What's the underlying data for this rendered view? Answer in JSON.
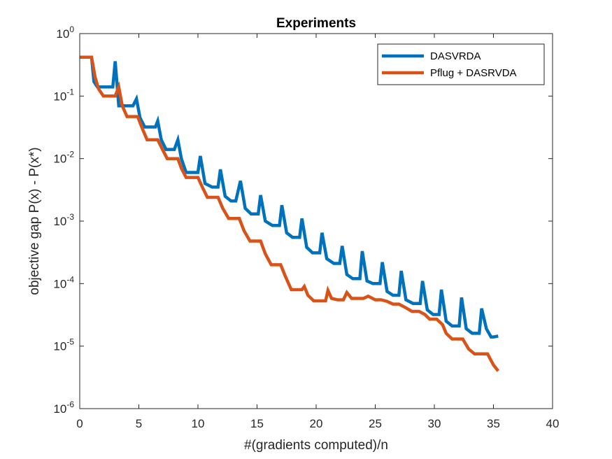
{
  "chart_data": {
    "type": "line",
    "title": "Experiments",
    "xlabel": "#(gradients computed)/n",
    "ylabel": "objective gap P(x) - P(x*)",
    "xlim": [
      0,
      40
    ],
    "ylim": [
      1e-06,
      1
    ],
    "yscale": "log",
    "xticks": [
      0,
      5,
      10,
      15,
      20,
      25,
      30,
      35,
      40
    ],
    "yticks": [
      {
        "value": 1e-06,
        "exp": "-6"
      },
      {
        "value": 1e-05,
        "exp": "-5"
      },
      {
        "value": 0.0001,
        "exp": "-4"
      },
      {
        "value": 0.001,
        "exp": "-3"
      },
      {
        "value": 0.01,
        "exp": "-2"
      },
      {
        "value": 0.1,
        "exp": "-1"
      },
      {
        "value": 1,
        "exp": "0"
      }
    ],
    "ytick_base": "10",
    "grid": false,
    "legend_position": "top-right",
    "series": [
      {
        "name": "DASVRDA",
        "color": "#0072BD",
        "x": [
          0,
          0.3,
          0.6,
          0.9,
          1.0,
          1.2,
          1.5,
          2.0,
          2.5,
          2.8,
          3.0,
          3.3,
          3.6,
          4.0,
          4.5,
          4.8,
          5.1,
          5.5,
          6.0,
          6.4,
          6.6,
          6.9,
          7.3,
          8.0,
          8.3,
          8.6,
          9.0,
          9.5,
          10.0,
          10.2,
          10.6,
          11.2,
          11.7,
          11.9,
          12.3,
          12.8,
          13.2,
          13.6,
          14.0,
          14.5,
          15.1,
          15.3,
          15.7,
          16.3,
          16.9,
          17.1,
          17.5,
          18.0,
          18.6,
          18.8,
          19.2,
          19.7,
          20.3,
          20.5,
          20.9,
          21.5,
          22.0,
          22.2,
          22.6,
          23.1,
          23.7,
          23.9,
          24.3,
          24.8,
          25.4,
          25.6,
          26.0,
          26.5,
          27.0,
          27.2,
          27.6,
          28.2,
          28.8,
          29.0,
          29.4,
          29.9,
          30.4,
          30.6,
          31.0,
          31.5,
          32.1,
          32.3,
          32.7,
          33.2,
          33.8,
          34.0,
          34.4,
          34.8,
          35.0,
          35.4
        ],
        "values": [
          0.42,
          0.42,
          0.42,
          0.42,
          0.42,
          0.17,
          0.14,
          0.14,
          0.14,
          0.14,
          0.36,
          0.07,
          0.07,
          0.07,
          0.07,
          0.09,
          0.045,
          0.032,
          0.032,
          0.032,
          0.04,
          0.02,
          0.014,
          0.014,
          0.02,
          0.01,
          0.006,
          0.006,
          0.006,
          0.011,
          0.004,
          0.0035,
          0.0035,
          0.0067,
          0.0025,
          0.0021,
          0.0021,
          0.0044,
          0.0016,
          0.0013,
          0.0013,
          0.0026,
          0.001,
          0.00085,
          0.00085,
          0.0018,
          0.00065,
          0.00055,
          0.00055,
          0.0011,
          0.00038,
          0.00031,
          0.00031,
          0.00065,
          0.00025,
          0.00021,
          0.00021,
          0.0004,
          0.00014,
          0.00012,
          0.00012,
          0.00033,
          0.00011,
          0.0001,
          0.0001,
          0.00022,
          7.5e-05,
          6.5e-05,
          6.5e-05,
          0.00016,
          5.5e-05,
          4.8e-05,
          4.8e-05,
          0.00011,
          3.8e-05,
          3.2e-05,
          3.2e-05,
          8e-05,
          2.5e-05,
          2.1e-05,
          2.1e-05,
          6e-05,
          1.9e-05,
          1.6e-05,
          1.6e-05,
          4e-05,
          1.9e-05,
          1.4e-05,
          1.4e-05,
          1.45e-05
        ]
      },
      {
        "name": "Pflug + DASRVDA",
        "color": "#D95319",
        "x": [
          0,
          0.5,
          1.0,
          1.3,
          1.6,
          2.0,
          2.5,
          3.0,
          3.3,
          3.6,
          4.0,
          4.5,
          4.9,
          5.3,
          5.7,
          6.2,
          6.6,
          7.0,
          7.4,
          7.9,
          8.3,
          8.6,
          9.0,
          9.6,
          10.0,
          10.4,
          10.8,
          11.3,
          11.7,
          12.1,
          12.6,
          13.1,
          13.5,
          13.9,
          14.4,
          15.0,
          15.3,
          15.7,
          16.2,
          16.7,
          17.0,
          17.4,
          17.9,
          18.3,
          18.8,
          19.0,
          19.3,
          19.8,
          20.3,
          20.8,
          21.0,
          21.3,
          21.8,
          22.3,
          22.6,
          23.0,
          23.5,
          24.0,
          24.4,
          25.0,
          25.5,
          26.0,
          26.5,
          27.0,
          27.6,
          28.1,
          28.7,
          29.2,
          29.6,
          30.2,
          30.7,
          31.0,
          31.5,
          32.0,
          32.4,
          32.9,
          33.4,
          33.9,
          34.5,
          35.0,
          35.4
        ],
        "values": [
          0.42,
          0.42,
          0.42,
          0.2,
          0.13,
          0.1,
          0.1,
          0.1,
          0.14,
          0.07,
          0.047,
          0.047,
          0.047,
          0.03,
          0.02,
          0.02,
          0.02,
          0.014,
          0.01,
          0.01,
          0.01,
          0.007,
          0.005,
          0.005,
          0.005,
          0.0034,
          0.0024,
          0.0024,
          0.0024,
          0.0016,
          0.0011,
          0.0011,
          0.0011,
          0.0007,
          0.00048,
          0.00048,
          0.00048,
          0.0003,
          0.0002,
          0.0002,
          0.0002,
          0.00013,
          8e-05,
          8e-05,
          8e-05,
          9e-05,
          6.5e-05,
          5.3e-05,
          5.3e-05,
          5.3e-05,
          7.8e-05,
          5.8e-05,
          5.5e-05,
          5.5e-05,
          7.2e-05,
          5.8e-05,
          5.8e-05,
          5.8e-05,
          6.3e-05,
          5.5e-05,
          5.5e-05,
          5.2e-05,
          4.7e-05,
          4.7e-05,
          4.1e-05,
          3.6e-05,
          3.6e-05,
          3.2e-05,
          2.7e-05,
          2.7e-05,
          2.2e-05,
          1.6e-05,
          1.3e-05,
          1.3e-05,
          1.3e-05,
          9e-06,
          7.5e-06,
          7.5e-06,
          7.5e-06,
          5e-06,
          4e-06
        ]
      }
    ]
  }
}
